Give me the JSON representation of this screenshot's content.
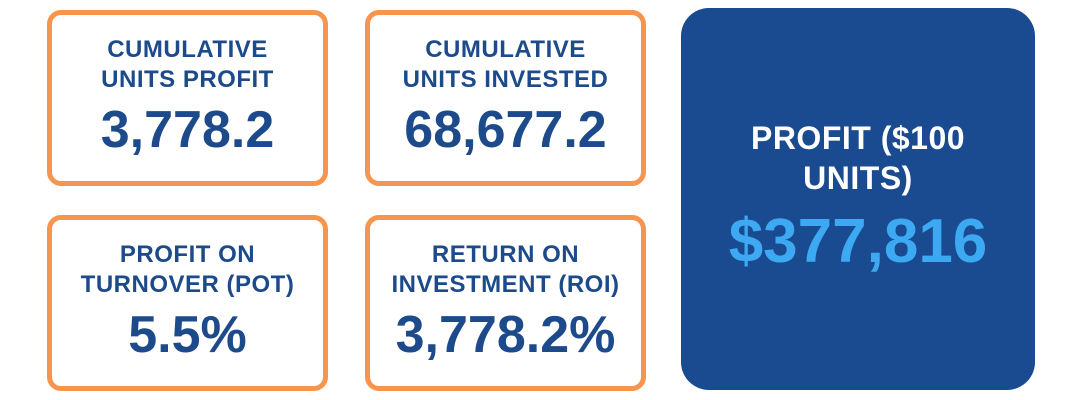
{
  "cards": [
    {
      "label_lines": [
        "CUMULATIVE",
        "UNITS PROFIT"
      ],
      "value": "3,778.2"
    },
    {
      "label_lines": [
        "CUMULATIVE",
        "UNITS INVESTED"
      ],
      "value": "68,677.2"
    },
    {
      "label_lines": [
        "PROFIT ON",
        "TURNOVER (POT)"
      ],
      "value": "5.5%"
    },
    {
      "label_lines": [
        "RETURN ON",
        "INVESTMENT (ROI)"
      ],
      "value": "3,778.2%"
    }
  ],
  "highlight": {
    "label_lines": [
      "PROFIT ($100",
      "UNITS)"
    ],
    "value": "$377,816"
  }
}
